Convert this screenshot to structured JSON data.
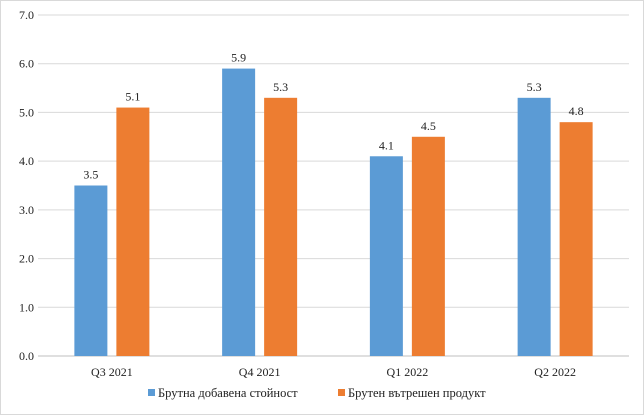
{
  "chart_data": {
    "type": "bar",
    "categories": [
      "Q3 2021",
      "Q4 2021",
      "Q1 2022",
      "Q2 2022"
    ],
    "series": [
      {
        "name": "Брутна добавена стойност",
        "values": [
          3.5,
          5.9,
          4.1,
          5.3
        ],
        "labels": [
          "3.5",
          "5.9",
          "4.1",
          "5.3"
        ],
        "color": "#5b9bd5"
      },
      {
        "name": "Брутен вътрешен продукт",
        "values": [
          5.1,
          5.3,
          4.5,
          4.8
        ],
        "labels": [
          "5.1",
          "5.3",
          "4.5",
          "4.8"
        ],
        "color": "#ed7d31"
      }
    ],
    "ylim": [
      0,
      7
    ],
    "yticks": [
      "0.0",
      "1.0",
      "2.0",
      "3.0",
      "4.0",
      "5.0",
      "6.0",
      "7.0"
    ],
    "grid": true,
    "legend": "bottom",
    "title": "",
    "xlabel": "",
    "ylabel": ""
  }
}
